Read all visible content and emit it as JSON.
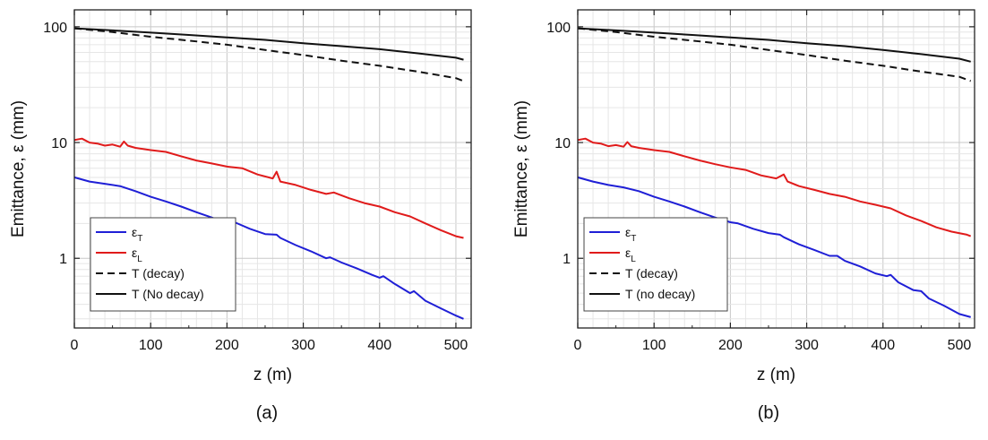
{
  "chart_data": [
    {
      "type": "line",
      "panel_label": "(a)",
      "xlabel": "z (m)",
      "ylabel": "Emittance, ε (mm)",
      "xlim": [
        0,
        520
      ],
      "ylim": [
        0.25,
        140
      ],
      "yscale": "log",
      "xticks": [
        0,
        100,
        200,
        300,
        400,
        500
      ],
      "yticks": [
        1,
        10,
        100
      ],
      "ytick_labels": [
        "1",
        "10",
        "100"
      ],
      "grid": true,
      "legend_position": "bottom-left",
      "legend": [
        {
          "base": "ε",
          "sub": "T"
        },
        {
          "base": "ε",
          "sub": "L"
        },
        {
          "base": "T (decay)",
          "sub": ""
        },
        {
          "base": "T (No decay)",
          "sub": ""
        }
      ],
      "series": [
        {
          "name": "εT",
          "color": "#1f1fd6",
          "dash": "solid",
          "x": [
            0,
            20,
            40,
            60,
            80,
            100,
            120,
            140,
            160,
            180,
            200,
            210,
            230,
            250,
            265,
            270,
            290,
            310,
            330,
            335,
            350,
            370,
            390,
            400,
            405,
            420,
            440,
            445,
            460,
            480,
            500,
            510
          ],
          "y": [
            5.0,
            4.6,
            4.4,
            4.2,
            3.8,
            3.4,
            3.1,
            2.8,
            2.5,
            2.25,
            2.0,
            2.05,
            1.8,
            1.62,
            1.6,
            1.5,
            1.3,
            1.15,
            1.0,
            1.02,
            0.92,
            0.82,
            0.72,
            0.68,
            0.7,
            0.6,
            0.5,
            0.52,
            0.43,
            0.37,
            0.32,
            0.3
          ]
        },
        {
          "name": "εL",
          "color": "#e01b1b",
          "dash": "solid",
          "x": [
            0,
            10,
            20,
            30,
            40,
            50,
            60,
            65,
            70,
            80,
            100,
            120,
            140,
            160,
            180,
            200,
            220,
            240,
            260,
            265,
            270,
            290,
            310,
            330,
            340,
            360,
            380,
            400,
            420,
            440,
            460,
            480,
            500,
            510
          ],
          "y": [
            10.5,
            10.8,
            10.0,
            9.8,
            9.4,
            9.6,
            9.2,
            10.2,
            9.4,
            9.0,
            8.6,
            8.3,
            7.6,
            7.0,
            6.6,
            6.2,
            6.0,
            5.3,
            4.9,
            5.6,
            4.6,
            4.3,
            3.9,
            3.6,
            3.7,
            3.3,
            3.0,
            2.8,
            2.5,
            2.3,
            2.0,
            1.75,
            1.55,
            1.5
          ]
        },
        {
          "name": "T (decay)",
          "color": "#111111",
          "dash": "dashed",
          "x": [
            0,
            50,
            100,
            150,
            200,
            250,
            300,
            350,
            400,
            450,
            500,
            510
          ],
          "y": [
            97,
            90,
            82,
            76,
            70,
            63,
            57,
            51,
            46,
            41,
            36,
            34
          ]
        },
        {
          "name": "T (No decay)",
          "color": "#111111",
          "dash": "solid",
          "x": [
            0,
            50,
            100,
            150,
            200,
            250,
            300,
            350,
            400,
            450,
            500,
            510
          ],
          "y": [
            97,
            93,
            89,
            85,
            81,
            77,
            72,
            68,
            64,
            59,
            54,
            52
          ]
        }
      ]
    },
    {
      "type": "line",
      "panel_label": "(b)",
      "xlabel": "z (m)",
      "ylabel": "Emittance, ε (mm)",
      "xlim": [
        0,
        520
      ],
      "ylim": [
        0.25,
        140
      ],
      "yscale": "log",
      "xticks": [
        0,
        100,
        200,
        300,
        400,
        500
      ],
      "yticks": [
        1,
        10,
        100
      ],
      "ytick_labels": [
        "1",
        "10",
        "100"
      ],
      "grid": true,
      "legend_position": "bottom-left",
      "legend": [
        {
          "base": "ε",
          "sub": "T"
        },
        {
          "base": "ε",
          "sub": "L"
        },
        {
          "base": "T (decay)",
          "sub": ""
        },
        {
          "base": "T (no decay)",
          "sub": ""
        }
      ],
      "series": [
        {
          "name": "εT",
          "color": "#1f1fd6",
          "dash": "solid",
          "x": [
            0,
            20,
            40,
            60,
            80,
            100,
            120,
            140,
            160,
            180,
            200,
            210,
            230,
            250,
            265,
            270,
            290,
            310,
            330,
            340,
            350,
            370,
            390,
            405,
            410,
            420,
            440,
            450,
            460,
            480,
            500,
            515
          ],
          "y": [
            5.0,
            4.6,
            4.3,
            4.1,
            3.8,
            3.4,
            3.1,
            2.8,
            2.5,
            2.25,
            2.05,
            2.0,
            1.8,
            1.65,
            1.6,
            1.52,
            1.32,
            1.18,
            1.05,
            1.05,
            0.95,
            0.85,
            0.74,
            0.7,
            0.72,
            0.62,
            0.53,
            0.52,
            0.45,
            0.39,
            0.33,
            0.31
          ]
        },
        {
          "name": "εL",
          "color": "#e01b1b",
          "dash": "solid",
          "x": [
            0,
            10,
            20,
            30,
            40,
            50,
            60,
            65,
            70,
            80,
            100,
            120,
            140,
            160,
            180,
            200,
            220,
            240,
            260,
            270,
            275,
            290,
            310,
            330,
            350,
            370,
            390,
            410,
            430,
            450,
            470,
            490,
            510,
            515
          ],
          "y": [
            10.5,
            10.8,
            10.0,
            9.8,
            9.3,
            9.5,
            9.2,
            10.1,
            9.3,
            9.0,
            8.6,
            8.3,
            7.6,
            7.0,
            6.5,
            6.1,
            5.8,
            5.2,
            4.9,
            5.3,
            4.6,
            4.2,
            3.9,
            3.6,
            3.4,
            3.1,
            2.9,
            2.7,
            2.35,
            2.1,
            1.85,
            1.7,
            1.6,
            1.55
          ]
        },
        {
          "name": "T (decay)",
          "color": "#111111",
          "dash": "dashed",
          "x": [
            0,
            50,
            100,
            150,
            200,
            250,
            300,
            350,
            400,
            450,
            500,
            515
          ],
          "y": [
            97,
            90,
            82,
            76,
            70,
            63,
            57,
            51,
            46,
            41,
            37,
            34
          ]
        },
        {
          "name": "T (no decay)",
          "color": "#111111",
          "dash": "solid",
          "x": [
            0,
            50,
            100,
            150,
            200,
            250,
            300,
            350,
            400,
            450,
            500,
            515
          ],
          "y": [
            97,
            93,
            89,
            85,
            81,
            77,
            72,
            68,
            63,
            58,
            53,
            50
          ]
        }
      ]
    }
  ]
}
